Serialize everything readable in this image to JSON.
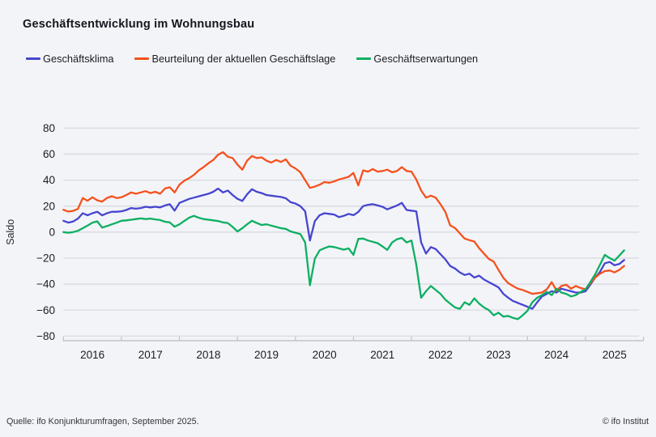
{
  "header": {
    "title": "Geschäftsentwicklung im Wohnungsbau",
    "legend": [
      {
        "label": "Geschäftsklima",
        "color": "#4645d0"
      },
      {
        "label": "Beurteilung der aktuellen Geschäftslage",
        "color": "#f5511d"
      },
      {
        "label": "Geschäftserwartungen",
        "color": "#0daf61"
      }
    ]
  },
  "footer": {
    "source": "Quelle: ifo Konjunkturumfragen, September 2025.",
    "copyright": "© ifo Institut"
  },
  "theme": {
    "background": "#f3f4f8",
    "grid_color": "#d9dae0",
    "axis_color": "#c2c3cb",
    "tick_label_color": "#1b1c24",
    "ylabel_color": "#26272f"
  },
  "chart_data": {
    "type": "line",
    "title": "Geschäftsentwicklung im Wohnungsbau",
    "xlabel": "",
    "ylabel": "Saldo",
    "frequency": "monthly",
    "x_start": "2016-01",
    "x_end": "2025-09",
    "x_year_ticks": [
      2016,
      2017,
      2018,
      2019,
      2020,
      2021,
      2022,
      2023,
      2024,
      2025
    ],
    "ylim": [
      -80,
      80
    ],
    "yticks": [
      80,
      60,
      40,
      20,
      0,
      -20,
      -40,
      -60,
      -80
    ],
    "grid": true,
    "legend_position": "top-left",
    "series": [
      {
        "name": "Geschäftsklima",
        "color": "#4645d0",
        "values": [
          8.7,
          7.3,
          8.1,
          10.4,
          14.5,
          12.9,
          14.5,
          15.6,
          12.9,
          14.5,
          15.6,
          15.6,
          16,
          17,
          18.5,
          18,
          18.5,
          19.5,
          19,
          19.5,
          19,
          20.5,
          21.5,
          16.5,
          22.5,
          24,
          25.5,
          26.5,
          27.5,
          28.5,
          29.5,
          31,
          33.5,
          30.5,
          32,
          28.5,
          25.6,
          24,
          29,
          33,
          31,
          30,
          28.5,
          28,
          27.5,
          27,
          26,
          23,
          22,
          20,
          16,
          -6.5,
          8.4,
          13,
          14.5,
          14,
          13.5,
          11.5,
          12.5,
          14,
          13,
          15.5,
          20,
          21,
          21.5,
          20.5,
          19.5,
          17.5,
          19,
          20.5,
          22.5,
          17,
          16.5,
          16,
          -8,
          -16.5,
          -11.5,
          -13,
          -17,
          -21,
          -26,
          -28,
          -31,
          -33,
          -32,
          -35,
          -33.5,
          -36.5,
          -38.5,
          -40.5,
          -42.5,
          -47.5,
          -50.5,
          -53,
          -54.5,
          -56,
          -57.5,
          -59,
          -54,
          -49.5,
          -47.5,
          -45.5,
          -46.5,
          -43.5,
          -44.5,
          -45.5,
          -46.5,
          -46.5,
          -45.5,
          -40.5,
          -35,
          -30.5,
          -24,
          -23,
          -25.5,
          -24.5,
          -21.5
        ]
      },
      {
        "name": "Beurteilung der aktuellen Geschäftslage",
        "color": "#f5511d",
        "values": [
          17.2,
          15.8,
          16.3,
          17.8,
          26.2,
          24.1,
          26.8,
          24.5,
          23.5,
          26.2,
          27.6,
          26.2,
          26.8,
          28.5,
          30.5,
          29.5,
          30.5,
          31.5,
          30,
          31,
          29.5,
          33.5,
          34.5,
          30.5,
          36.5,
          39.5,
          41.5,
          44,
          47.5,
          50,
          53,
          55.5,
          59.5,
          61.5,
          58,
          57,
          52,
          48,
          55,
          58.5,
          57,
          57.5,
          55,
          53.5,
          55.5,
          54,
          56,
          51,
          49,
          46,
          40,
          34,
          35,
          36.5,
          38.5,
          38,
          39,
          40.5,
          41.5,
          42.5,
          45.5,
          36,
          47.5,
          46.5,
          48.5,
          46.5,
          47,
          48,
          46,
          47,
          50,
          47,
          46.5,
          40.5,
          32,
          26.5,
          28,
          26.5,
          21.5,
          15.5,
          5.2,
          3.2,
          -1,
          -5,
          -6.2,
          -7.2,
          -12.4,
          -16.5,
          -20.7,
          -22.7,
          -29,
          -35.2,
          -39.3,
          -41.5,
          -43.5,
          -44.5,
          -46,
          -47.5,
          -47,
          -46.5,
          -44,
          -38.5,
          -45,
          -41.5,
          -40.5,
          -43.5,
          -41.5,
          -43,
          -44,
          -39.5,
          -35,
          -32,
          -30,
          -29.5,
          -31,
          -29,
          -26
        ]
      },
      {
        "name": "Geschäftserwartungen",
        "color": "#0daf61",
        "values": [
          0,
          -0.5,
          0,
          1,
          3,
          5,
          7.3,
          8.3,
          3.5,
          4.6,
          6,
          7.2,
          8.7,
          9,
          9.5,
          10,
          10.5,
          10,
          10.4,
          9.8,
          9.3,
          8,
          7.5,
          4.2,
          6,
          8.5,
          11,
          12.5,
          11,
          10,
          9.5,
          9,
          8.5,
          7.5,
          7,
          4,
          0.5,
          3,
          6,
          8.7,
          7,
          5.5,
          6,
          5,
          4,
          3,
          2.5,
          0.5,
          -0.5,
          -1.5,
          -8,
          -41,
          -20.5,
          -14,
          -12.4,
          -11,
          -11.5,
          -12.5,
          -13.5,
          -12.5,
          -17.5,
          -5.2,
          -5,
          -6.5,
          -7.5,
          -8.5,
          -11,
          -13.7,
          -8,
          -5.5,
          -4.5,
          -8,
          -6.5,
          -25,
          -50.5,
          -45.5,
          -41.5,
          -44.5,
          -47.5,
          -52,
          -55,
          -58,
          -59,
          -54,
          -56,
          -51,
          -55,
          -58,
          -60,
          -64,
          -62,
          -65,
          -64.5,
          -66,
          -67,
          -64,
          -60.5,
          -54,
          -50.5,
          -48.5,
          -46,
          -48.5,
          -43.5,
          -46.5,
          -47.5,
          -49.5,
          -48.5,
          -46,
          -44,
          -38.5,
          -32.5,
          -25,
          -17.5,
          -20,
          -22,
          -18,
          -14
        ]
      }
    ]
  }
}
